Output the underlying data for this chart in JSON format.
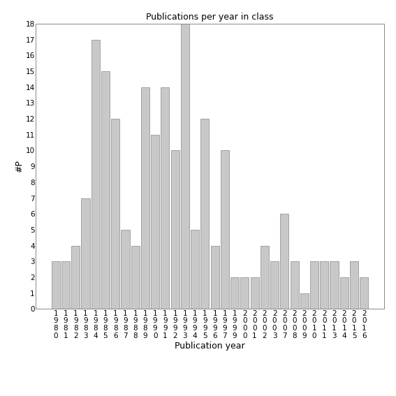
{
  "years": [
    "1980",
    "1981",
    "1982",
    "1983",
    "1984",
    "1985",
    "1986",
    "1987",
    "1988",
    "1989",
    "1990",
    "1991",
    "1992",
    "1993",
    "1994",
    "1995",
    "1996",
    "1997",
    "1999",
    "2000",
    "2001",
    "2002",
    "2003",
    "2007",
    "2008",
    "2009",
    "2010",
    "2011",
    "2013",
    "2014",
    "2015",
    "2016"
  ],
  "values": [
    3,
    3,
    4,
    7,
    17,
    15,
    12,
    5,
    4,
    14,
    11,
    14,
    10,
    18,
    5,
    12,
    4,
    10,
    2,
    2,
    2,
    4,
    3,
    6,
    3,
    1,
    3,
    3,
    3,
    2,
    3,
    2
  ],
  "title": "Publications per year in class",
  "xlabel": "Publication year",
  "ylabel": "#P",
  "bar_color": "#c8c8c8",
  "bar_edge_color": "#888888",
  "ylim_max": 18,
  "yticks": [
    0,
    1,
    2,
    3,
    4,
    5,
    6,
    7,
    8,
    9,
    10,
    11,
    12,
    13,
    14,
    15,
    16,
    17,
    18
  ],
  "bg_color": "#ffffff",
  "title_fontsize": 9,
  "label_fontsize": 9,
  "tick_fontsize": 7.5,
  "ylabel_fontsize": 9
}
